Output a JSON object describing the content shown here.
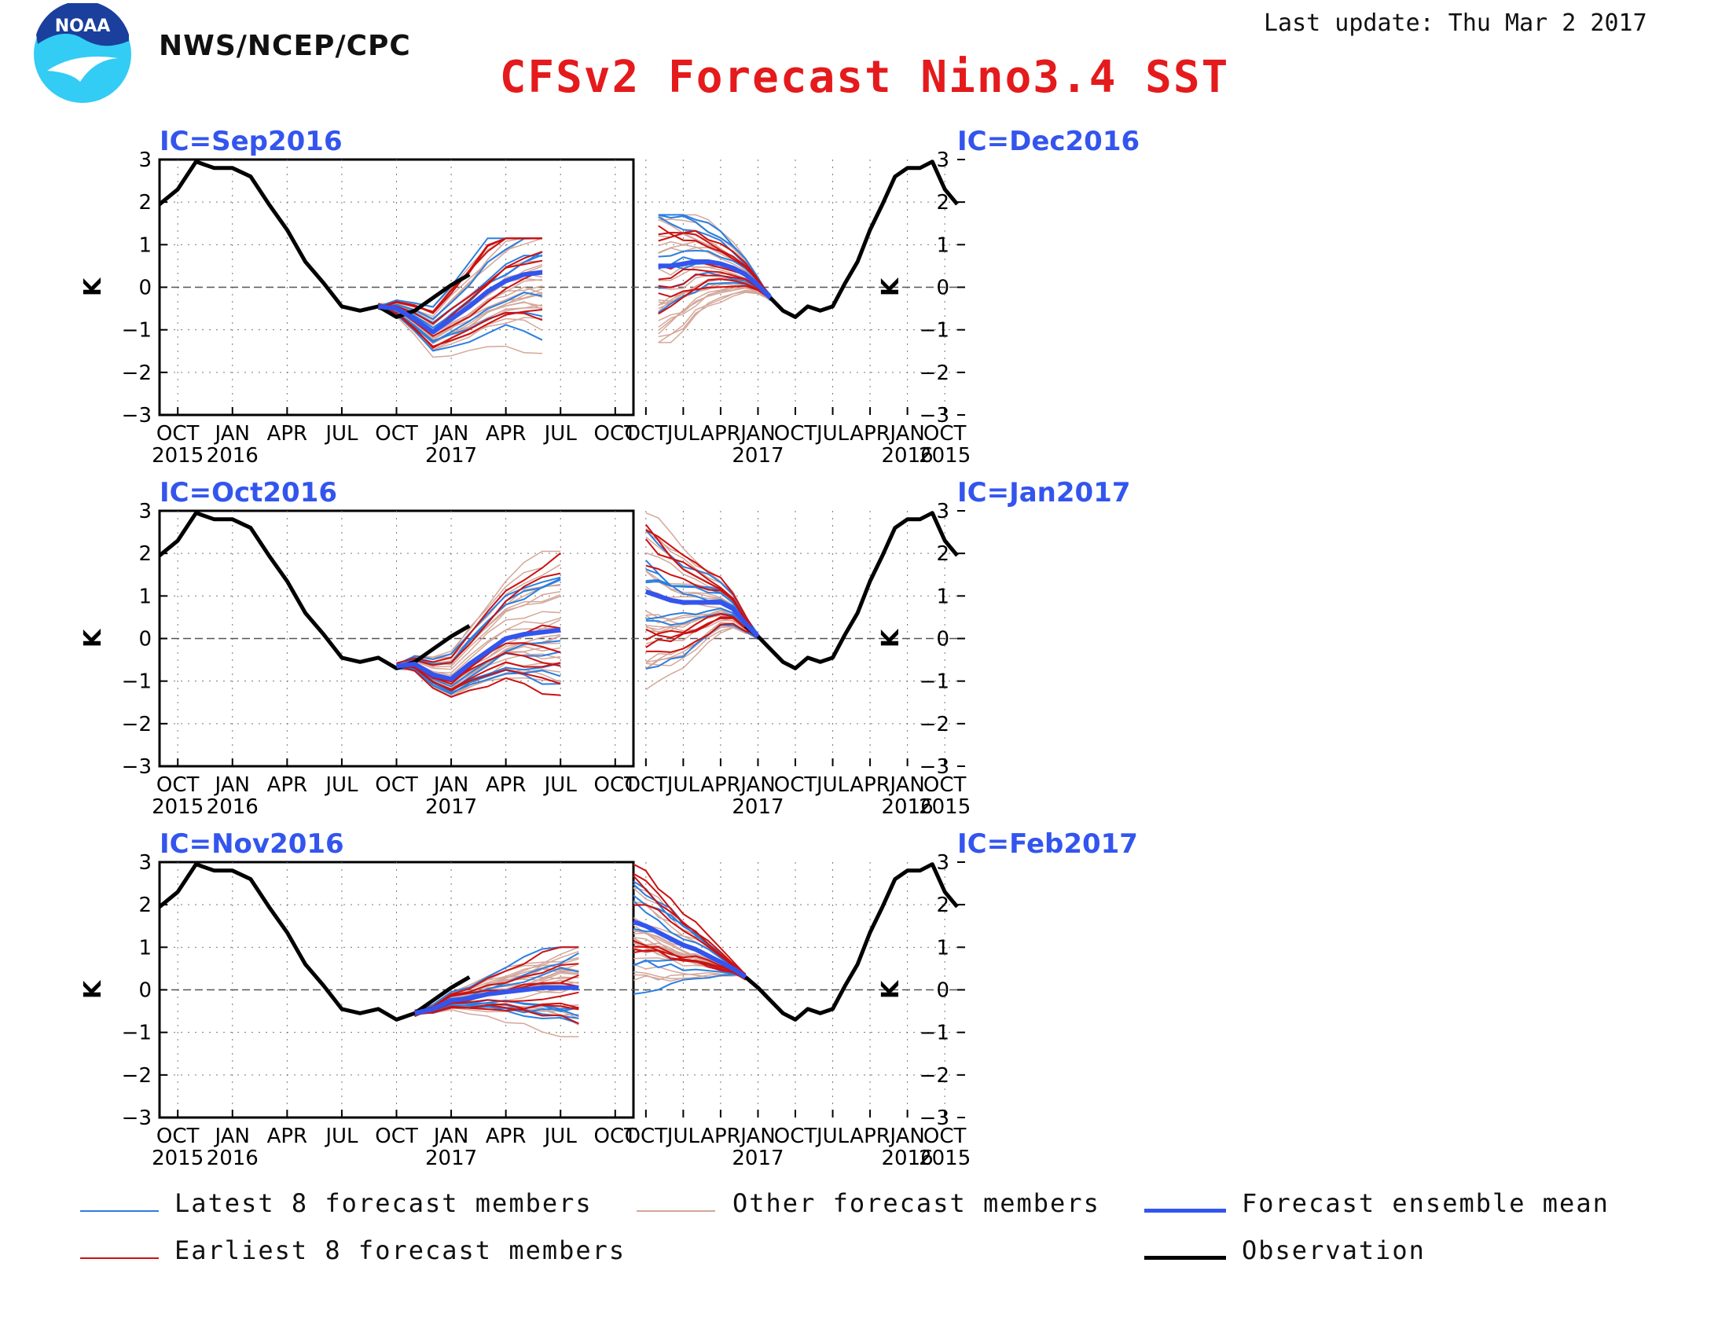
{
  "header": {
    "agency": "NWS/NCEP/CPC",
    "title": "CFSv2 Forecast Nino3.4 SST",
    "last_update": "Last update: Thu Mar 2 2017",
    "logo_text": "NOAA"
  },
  "colors": {
    "latest": "#2a7fe0",
    "earliest": "#cc1111",
    "other": "#d4a79a",
    "mean": "#3355ee",
    "observation": "#000000",
    "title": "#e41a1c",
    "panel_title": "#3355ee"
  },
  "legend": {
    "latest": "Latest 8 forecast members",
    "other": "Other forecast members",
    "mean": "Forecast ensemble mean",
    "earliest": "Earliest 8 forecast members",
    "observation": "Observation"
  },
  "chart_data": [
    {
      "type": "line",
      "title": "IC=Sep2016",
      "ylabel": "K",
      "ylim": [
        -3,
        3
      ],
      "x_ticks": [
        "OCT\n2015",
        "JAN\n2016",
        "APR",
        "JUL",
        "OCT",
        "JAN\n2017",
        "APR",
        "JUL",
        "OCT"
      ],
      "x_range": [
        "2015-10",
        "2017-11"
      ],
      "observation": {
        "x": [
          "2015-09",
          "2015-10",
          "2015-11",
          "2015-12",
          "2016-01",
          "2016-02",
          "2016-03",
          "2016-04",
          "2016-05",
          "2016-06",
          "2016-07",
          "2016-08",
          "2016-09",
          "2016-10",
          "2016-11",
          "2016-12",
          "2017-01",
          "2017-02"
        ],
        "y": [
          1.95,
          2.3,
          2.95,
          2.8,
          2.8,
          2.6,
          1.95,
          1.35,
          0.6,
          0.1,
          -0.45,
          -0.55,
          -0.45,
          -0.7,
          -0.55,
          -0.25,
          0.05,
          0.3
        ]
      },
      "ensemble_mean": {
        "x": [
          "2016-09",
          "2016-10",
          "2016-11",
          "2016-12",
          "2017-01",
          "2017-02",
          "2017-03",
          "2017-04",
          "2017-05",
          "2017-06"
        ],
        "y": [
          -0.45,
          -0.5,
          -0.75,
          -1.05,
          -0.75,
          -0.45,
          -0.1,
          0.15,
          0.3,
          0.35
        ]
      },
      "members_range": {
        "months": [
          "2016-09",
          "2017-06"
        ],
        "min": -1.75,
        "max": 1.15
      }
    },
    {
      "type": "line",
      "title": "IC=Dec2016",
      "ylabel": "K",
      "ylim": [
        -3,
        3
      ],
      "x_ticks": [
        "OCT\n2015",
        "JAN\n2016",
        "APR",
        "JUL",
        "OCT",
        "JAN\n2017",
        "APR",
        "JUL",
        "OCT"
      ],
      "x_range": [
        "2015-10",
        "2017-11"
      ],
      "observation": {
        "x": [
          "2015-09",
          "2015-10",
          "2015-11",
          "2015-12",
          "2016-01",
          "2016-02",
          "2016-03",
          "2016-04",
          "2016-05",
          "2016-06",
          "2016-07",
          "2016-08",
          "2016-09",
          "2016-10",
          "2016-11",
          "2016-12",
          "2017-01",
          "2017-02"
        ],
        "y": [
          1.95,
          2.3,
          2.95,
          2.8,
          2.8,
          2.6,
          1.95,
          1.35,
          0.6,
          0.1,
          -0.45,
          -0.55,
          -0.45,
          -0.7,
          -0.55,
          -0.25,
          0.05,
          0.3
        ]
      },
      "ensemble_mean": {
        "x": [
          "2016-12",
          "2017-01",
          "2017-02",
          "2017-03",
          "2017-04",
          "2017-05",
          "2017-06",
          "2017-07",
          "2017-08",
          "2017-09"
        ],
        "y": [
          -0.25,
          0.05,
          0.3,
          0.45,
          0.55,
          0.6,
          0.6,
          0.55,
          0.5,
          0.5
        ]
      },
      "members_range": {
        "months": [
          "2016-12",
          "2017-09"
        ],
        "min": -1.3,
        "max": 1.7
      }
    },
    {
      "type": "line",
      "title": "IC=Oct2016",
      "ylabel": "K",
      "ylim": [
        -3,
        3
      ],
      "x_ticks": [
        "OCT\n2015",
        "JAN\n2016",
        "APR",
        "JUL",
        "OCT",
        "JAN\n2017",
        "APR",
        "JUL",
        "OCT"
      ],
      "x_range": [
        "2015-10",
        "2017-11"
      ],
      "observation": {
        "x": [
          "2015-09",
          "2015-10",
          "2015-11",
          "2015-12",
          "2016-01",
          "2016-02",
          "2016-03",
          "2016-04",
          "2016-05",
          "2016-06",
          "2016-07",
          "2016-08",
          "2016-09",
          "2016-10",
          "2016-11",
          "2016-12",
          "2017-01",
          "2017-02"
        ],
        "y": [
          1.95,
          2.3,
          2.95,
          2.8,
          2.8,
          2.6,
          1.95,
          1.35,
          0.6,
          0.1,
          -0.45,
          -0.55,
          -0.45,
          -0.7,
          -0.55,
          -0.25,
          0.05,
          0.3
        ]
      },
      "ensemble_mean": {
        "x": [
          "2016-10",
          "2016-11",
          "2016-12",
          "2017-01",
          "2017-02",
          "2017-03",
          "2017-04",
          "2017-05",
          "2017-06",
          "2017-07"
        ],
        "y": [
          -0.65,
          -0.6,
          -0.85,
          -0.95,
          -0.6,
          -0.3,
          0.0,
          0.1,
          0.15,
          0.2
        ]
      },
      "members_range": {
        "months": [
          "2016-10",
          "2017-07"
        ],
        "min": -1.55,
        "max": 2.05
      }
    },
    {
      "type": "line",
      "title": "IC=Jan2017",
      "ylabel": "K",
      "ylim": [
        -3,
        3
      ],
      "x_ticks": [
        "OCT\n2015",
        "JAN\n2016",
        "APR",
        "JUL",
        "OCT",
        "JAN\n2017",
        "APR",
        "JUL",
        "OCT"
      ],
      "x_range": [
        "2015-10",
        "2017-11"
      ],
      "observation": {
        "x": [
          "2015-09",
          "2015-10",
          "2015-11",
          "2015-12",
          "2016-01",
          "2016-02",
          "2016-03",
          "2016-04",
          "2016-05",
          "2016-06",
          "2016-07",
          "2016-08",
          "2016-09",
          "2016-10",
          "2016-11",
          "2016-12",
          "2017-01",
          "2017-02"
        ],
        "y": [
          1.95,
          2.3,
          2.95,
          2.8,
          2.8,
          2.6,
          1.95,
          1.35,
          0.6,
          0.1,
          -0.45,
          -0.55,
          -0.45,
          -0.7,
          -0.55,
          -0.25,
          0.05,
          0.3
        ]
      },
      "ensemble_mean": {
        "x": [
          "2017-01",
          "2017-02",
          "2017-03",
          "2017-04",
          "2017-05",
          "2017-06",
          "2017-07",
          "2017-08",
          "2017-09",
          "2017-10"
        ],
        "y": [
          0.05,
          0.35,
          0.7,
          0.85,
          0.85,
          0.85,
          0.85,
          0.9,
          1.0,
          1.1
        ]
      },
      "members_range": {
        "months": [
          "2017-01",
          "2017-10"
        ],
        "min": -1.2,
        "max": 2.95
      }
    },
    {
      "type": "line",
      "title": "IC=Nov2016",
      "ylabel": "K",
      "ylim": [
        -3,
        3
      ],
      "x_ticks": [
        "OCT\n2015",
        "JAN\n2016",
        "APR",
        "JUL",
        "OCT",
        "JAN\n2017",
        "APR",
        "JUL",
        "OCT"
      ],
      "x_range": [
        "2015-10",
        "2017-11"
      ],
      "observation": {
        "x": [
          "2015-09",
          "2015-10",
          "2015-11",
          "2015-12",
          "2016-01",
          "2016-02",
          "2016-03",
          "2016-04",
          "2016-05",
          "2016-06",
          "2016-07",
          "2016-08",
          "2016-09",
          "2016-10",
          "2016-11",
          "2016-12",
          "2017-01",
          "2017-02"
        ],
        "y": [
          1.95,
          2.3,
          2.95,
          2.8,
          2.8,
          2.6,
          1.95,
          1.35,
          0.6,
          0.1,
          -0.45,
          -0.55,
          -0.45,
          -0.7,
          -0.55,
          -0.25,
          0.05,
          0.3
        ]
      },
      "ensemble_mean": {
        "x": [
          "2016-11",
          "2016-12",
          "2017-01",
          "2017-02",
          "2017-03",
          "2017-04",
          "2017-05",
          "2017-06",
          "2017-07",
          "2017-08"
        ],
        "y": [
          -0.55,
          -0.45,
          -0.25,
          -0.2,
          -0.1,
          -0.05,
          0.0,
          0.05,
          0.05,
          0.05
        ]
      },
      "members_range": {
        "months": [
          "2016-11",
          "2017-08"
        ],
        "min": -1.1,
        "max": 1.0
      }
    },
    {
      "type": "line",
      "title": "IC=Feb2017",
      "ylabel": "K",
      "ylim": [
        -3,
        3
      ],
      "x_ticks": [
        "OCT\n2015",
        "JAN\n2016",
        "APR",
        "JUL",
        "OCT",
        "JAN\n2017",
        "APR",
        "JUL",
        "OCT"
      ],
      "x_range": [
        "2015-10",
        "2017-11"
      ],
      "observation": {
        "x": [
          "2015-09",
          "2015-10",
          "2015-11",
          "2015-12",
          "2016-01",
          "2016-02",
          "2016-03",
          "2016-04",
          "2016-05",
          "2016-06",
          "2016-07",
          "2016-08",
          "2016-09",
          "2016-10",
          "2016-11",
          "2016-12",
          "2017-01",
          "2017-02"
        ],
        "y": [
          1.95,
          2.3,
          2.95,
          2.8,
          2.8,
          2.6,
          1.95,
          1.35,
          0.6,
          0.1,
          -0.45,
          -0.55,
          -0.45,
          -0.7,
          -0.55,
          -0.25,
          0.05,
          0.3
        ]
      },
      "ensemble_mean": {
        "x": [
          "2017-02",
          "2017-03",
          "2017-04",
          "2017-05",
          "2017-06",
          "2017-07",
          "2017-08",
          "2017-09",
          "2017-10",
          "2017-11"
        ],
        "y": [
          0.3,
          0.5,
          0.65,
          0.8,
          0.95,
          1.05,
          1.2,
          1.35,
          1.5,
          1.6
        ]
      },
      "members_range": {
        "months": [
          "2017-02",
          "2017-11"
        ],
        "min": -0.1,
        "max": 2.95
      }
    }
  ]
}
